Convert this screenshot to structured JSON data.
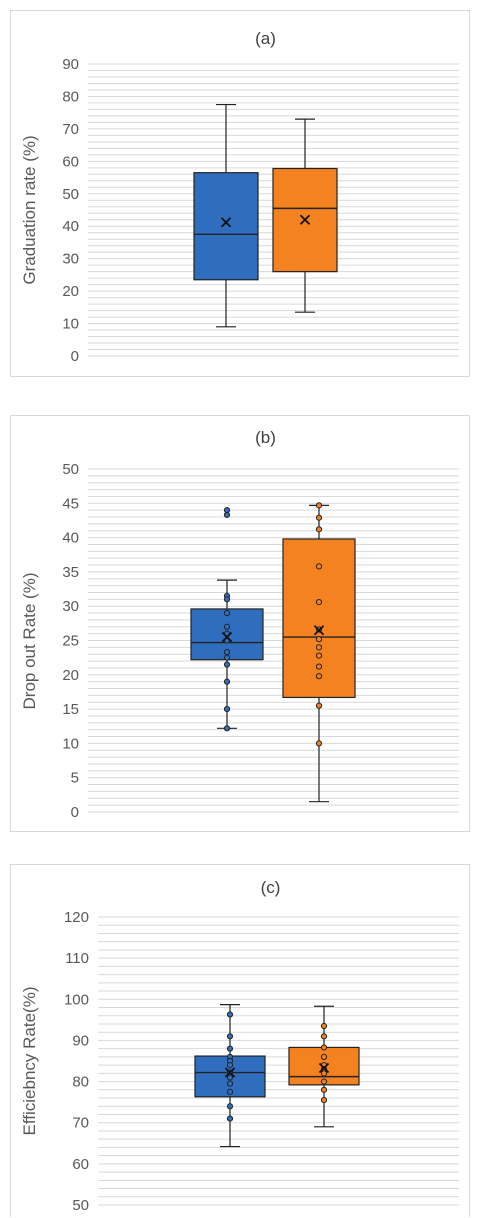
{
  "colors": {
    "series1": "#2f6ebf",
    "series2": "#f58220",
    "grid": "#d9d9d9",
    "text": "#595959",
    "title": "#404040"
  },
  "chart_data": [
    {
      "type": "box",
      "title": "(a)",
      "ylabel": "Graduation rate (%)",
      "ylim": [
        0,
        90
      ],
      "yticks": [
        0,
        10,
        20,
        30,
        40,
        50,
        60,
        70,
        80,
        90
      ],
      "minor_step": 2,
      "grid": true,
      "series": [
        {
          "color": "#2f6ebf",
          "min": 9,
          "q1": 23.5,
          "median": 37.5,
          "q3": 56.5,
          "max": 77.5,
          "mean": 41.2,
          "points": []
        },
        {
          "color": "#f58220",
          "min": 13.5,
          "q1": 26,
          "median": 45.5,
          "q3": 57.8,
          "max": 73,
          "mean": 42,
          "points": []
        }
      ]
    },
    {
      "type": "box",
      "title": "(b)",
      "ylabel": "Drop out Rate (%)",
      "ylim": [
        0,
        50
      ],
      "yticks": [
        0,
        5,
        10,
        15,
        20,
        25,
        30,
        35,
        40,
        45,
        50
      ],
      "minor_step": 1,
      "grid": true,
      "series": [
        {
          "color": "#2f6ebf",
          "min": 12.2,
          "q1": 22.2,
          "median": 24.7,
          "q3": 29.6,
          "max": 33.8,
          "mean": 25.5,
          "points": [
            44,
            43.3,
            31.5,
            31,
            29,
            27,
            26,
            25,
            23.3,
            22.5,
            21.5,
            19,
            15,
            12.2
          ]
        },
        {
          "color": "#f58220",
          "min": 1.5,
          "q1": 16.7,
          "median": 25.5,
          "q3": 39.8,
          "max": 44.7,
          "mean": 26.5,
          "points": [
            44.7,
            42.9,
            41.2,
            35.8,
            30.6,
            26.6,
            25.2,
            24,
            22.8,
            21.2,
            19.8,
            15.5,
            10
          ]
        }
      ]
    },
    {
      "type": "box",
      "title": "(c)",
      "ylabel": "Efficiebncy Rate(%)",
      "ylim": [
        50,
        120
      ],
      "yticks": [
        50,
        60,
        70,
        80,
        90,
        100,
        110,
        120
      ],
      "minor_step": 2,
      "grid": true,
      "series": [
        {
          "color": "#2f6ebf",
          "min": 64.2,
          "q1": 76.3,
          "median": 82.2,
          "q3": 86.2,
          "max": 98.7,
          "mean": 82.2,
          "points": [
            96.3,
            91,
            88,
            86,
            85,
            84,
            82.2,
            81,
            79.5,
            77.5,
            74,
            71
          ]
        },
        {
          "color": "#f58220",
          "min": 69,
          "q1": 79.2,
          "median": 81.2,
          "q3": 88.3,
          "max": 98.3,
          "mean": 83.3,
          "points": [
            93.5,
            91,
            88.3,
            86,
            84,
            83,
            82,
            80,
            78,
            75.5
          ]
        }
      ]
    }
  ]
}
